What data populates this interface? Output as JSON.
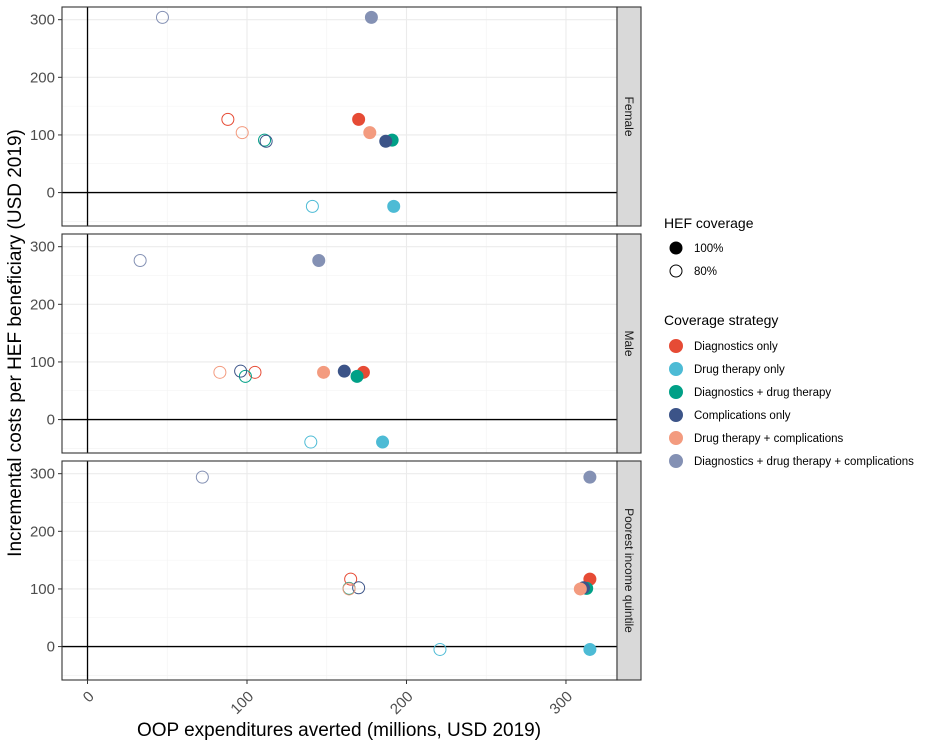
{
  "chart_data": {
    "type": "scatter",
    "xlabel": "OOP expenditures averted (millions, USD 2019)",
    "ylabel": "Incremental costs per HEF beneficiary (USD 2019)",
    "xlim": [
      -16,
      332
    ],
    "ylim": [
      -58,
      322
    ],
    "x_ticks": [
      0,
      100,
      200,
      300
    ],
    "y_ticks": [
      0,
      100,
      200,
      300
    ],
    "grid": true,
    "reference_lines": {
      "x": 0,
      "y": 0
    },
    "legend_position": "right",
    "facet_strip_position": "right",
    "legends": [
      {
        "title": "HEF coverage",
        "items": [
          {
            "label": "100%",
            "shape": "filled"
          },
          {
            "label": "80%",
            "shape": "open"
          }
        ]
      },
      {
        "title": "Coverage strategy",
        "items": [
          {
            "label": "Diagnostics only",
            "color": "#e64b35"
          },
          {
            "label": "Drug therapy only",
            "color": "#4dbbd5"
          },
          {
            "label": "Diagnostics + drug therapy",
            "color": "#00a087"
          },
          {
            "label": "Complications only",
            "color": "#3c5488"
          },
          {
            "label": "Drug therapy + complications",
            "color": "#f39b7f"
          },
          {
            "label": "Diagnostics + drug therapy + complications",
            "color": "#8491b4"
          }
        ]
      }
    ],
    "panels": [
      {
        "label": "Female",
        "points": [
          {
            "strategy": "Diagnostics only",
            "coverage": "100%",
            "x": 170,
            "y": 127
          },
          {
            "strategy": "Diagnostics only",
            "coverage": "80%",
            "x": 88,
            "y": 127
          },
          {
            "strategy": "Drug therapy only",
            "coverage": "100%",
            "x": 192,
            "y": -24
          },
          {
            "strategy": "Drug therapy only",
            "coverage": "80%",
            "x": 141,
            "y": -24
          },
          {
            "strategy": "Diagnostics + drug therapy",
            "coverage": "100%",
            "x": 191,
            "y": 91
          },
          {
            "strategy": "Diagnostics + drug therapy",
            "coverage": "80%",
            "x": 111,
            "y": 91
          },
          {
            "strategy": "Complications only",
            "coverage": "100%",
            "x": 187,
            "y": 89
          },
          {
            "strategy": "Complications only",
            "coverage": "80%",
            "x": 112,
            "y": 89
          },
          {
            "strategy": "Drug therapy + complications",
            "coverage": "100%",
            "x": 177,
            "y": 104
          },
          {
            "strategy": "Drug therapy + complications",
            "coverage": "80%",
            "x": 97,
            "y": 104
          },
          {
            "strategy": "Diagnostics + drug therapy + complications",
            "coverage": "100%",
            "x": 178,
            "y": 304
          },
          {
            "strategy": "Diagnostics + drug therapy + complications",
            "coverage": "80%",
            "x": 47,
            "y": 304
          }
        ]
      },
      {
        "label": "Male",
        "points": [
          {
            "strategy": "Diagnostics only",
            "coverage": "100%",
            "x": 173,
            "y": 82
          },
          {
            "strategy": "Diagnostics only",
            "coverage": "80%",
            "x": 105,
            "y": 82
          },
          {
            "strategy": "Drug therapy only",
            "coverage": "100%",
            "x": 185,
            "y": -39
          },
          {
            "strategy": "Drug therapy only",
            "coverage": "80%",
            "x": 140,
            "y": -39
          },
          {
            "strategy": "Diagnostics + drug therapy",
            "coverage": "100%",
            "x": 169,
            "y": 75
          },
          {
            "strategy": "Diagnostics + drug therapy",
            "coverage": "80%",
            "x": 99,
            "y": 75
          },
          {
            "strategy": "Complications only",
            "coverage": "100%",
            "x": 161,
            "y": 84
          },
          {
            "strategy": "Complications only",
            "coverage": "80%",
            "x": 96,
            "y": 84
          },
          {
            "strategy": "Drug therapy + complications",
            "coverage": "100%",
            "x": 148,
            "y": 82
          },
          {
            "strategy": "Drug therapy + complications",
            "coverage": "80%",
            "x": 83,
            "y": 82
          },
          {
            "strategy": "Diagnostics + drug therapy + complications",
            "coverage": "100%",
            "x": 145,
            "y": 276
          },
          {
            "strategy": "Diagnostics + drug therapy + complications",
            "coverage": "80%",
            "x": 33,
            "y": 276
          }
        ]
      },
      {
        "label": "Poorest income quintile",
        "points": [
          {
            "strategy": "Diagnostics only",
            "coverage": "100%",
            "x": 315,
            "y": 117
          },
          {
            "strategy": "Diagnostics only",
            "coverage": "80%",
            "x": 165,
            "y": 117
          },
          {
            "strategy": "Drug therapy only",
            "coverage": "100%",
            "x": 315,
            "y": -5
          },
          {
            "strategy": "Drug therapy only",
            "coverage": "80%",
            "x": 221,
            "y": -5
          },
          {
            "strategy": "Diagnostics + drug therapy",
            "coverage": "100%",
            "x": 313,
            "y": 101
          },
          {
            "strategy": "Diagnostics + drug therapy",
            "coverage": "80%",
            "x": 164,
            "y": 101
          },
          {
            "strategy": "Complications only",
            "coverage": "100%",
            "x": 311,
            "y": 102
          },
          {
            "strategy": "Complications only",
            "coverage": "80%",
            "x": 170,
            "y": 102
          },
          {
            "strategy": "Drug therapy + complications",
            "coverage": "100%",
            "x": 309,
            "y": 100
          },
          {
            "strategy": "Drug therapy + complications",
            "coverage": "80%",
            "x": 164,
            "y": 100
          },
          {
            "strategy": "Diagnostics + drug therapy + complications",
            "coverage": "100%",
            "x": 315,
            "y": 294
          },
          {
            "strategy": "Diagnostics + drug therapy + complications",
            "coverage": "80%",
            "x": 72,
            "y": 294
          }
        ]
      }
    ]
  }
}
